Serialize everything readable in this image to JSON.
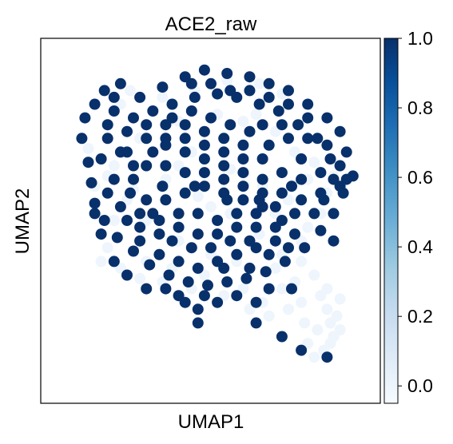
{
  "chart_data": {
    "type": "scatter",
    "title": "ACE2_raw",
    "xlabel": "UMAP1",
    "ylabel": "UMAP2",
    "xlim": [
      0,
      100
    ],
    "ylim": [
      0,
      100
    ],
    "grid": false,
    "colorbar": {
      "colormap": "Blues",
      "range": [
        -0.05,
        1.0
      ],
      "ticks": [
        0.0,
        0.2,
        0.4,
        0.6,
        0.8,
        1.0
      ],
      "tick_labels": [
        "0.0",
        "0.2",
        "0.4",
        "0.6",
        "0.8",
        "1.0"
      ],
      "low_color": "#f7fbff",
      "high_color": "#08306b"
    },
    "points_value_0": [
      [
        25,
        88
      ],
      [
        22,
        84
      ],
      [
        35,
        86
      ],
      [
        45,
        88
      ],
      [
        55,
        91
      ],
      [
        65,
        90
      ],
      [
        72,
        87
      ],
      [
        60,
        79
      ],
      [
        40,
        79
      ],
      [
        28,
        74
      ],
      [
        12,
        71
      ],
      [
        18,
        63
      ],
      [
        24,
        56
      ],
      [
        30,
        50
      ],
      [
        40,
        44
      ],
      [
        50,
        40
      ],
      [
        58,
        38
      ],
      [
        70,
        36
      ],
      [
        78,
        38
      ],
      [
        84,
        28
      ],
      [
        86,
        24
      ],
      [
        87,
        20
      ],
      [
        88,
        16
      ],
      [
        85,
        12
      ],
      [
        82,
        10
      ],
      [
        80,
        14
      ],
      [
        83,
        18
      ],
      [
        89,
        22
      ],
      [
        90,
        27
      ],
      [
        78,
        26
      ],
      [
        72,
        40
      ],
      [
        65,
        46
      ],
      [
        56,
        52
      ],
      [
        46,
        57
      ],
      [
        36,
        62
      ],
      [
        26,
        59
      ],
      [
        20,
        50
      ],
      [
        18,
        42
      ],
      [
        16,
        38
      ],
      [
        22,
        36
      ],
      [
        30,
        38
      ],
      [
        38,
        36
      ],
      [
        48,
        34
      ],
      [
        60,
        30
      ],
      [
        66,
        26
      ],
      [
        72,
        30
      ],
      [
        76,
        32
      ],
      [
        68,
        22
      ],
      [
        62,
        24
      ],
      [
        54,
        28
      ],
      [
        44,
        30
      ],
      [
        35,
        32
      ],
      [
        28,
        33
      ],
      [
        80,
        48
      ],
      [
        84,
        52
      ],
      [
        86,
        58
      ],
      [
        88,
        63
      ],
      [
        82,
        67
      ],
      [
        76,
        70
      ],
      [
        70,
        76
      ],
      [
        64,
        81
      ],
      [
        52,
        81
      ],
      [
        44,
        70
      ],
      [
        56,
        65
      ],
      [
        66,
        60
      ],
      [
        74,
        56
      ],
      [
        80,
        62
      ],
      [
        20,
        66
      ],
      [
        14,
        60
      ],
      [
        82,
        34
      ],
      [
        87,
        14
      ],
      [
        90,
        18
      ],
      [
        86,
        30
      ],
      [
        79,
        20
      ],
      [
        74,
        24
      ],
      [
        78,
        44
      ],
      [
        50,
        54
      ],
      [
        60,
        56
      ],
      [
        70,
        52
      ],
      [
        40,
        66
      ]
    ],
    "points_value_1": [
      [
        17,
        88
      ],
      [
        22,
        90
      ],
      [
        28,
        86
      ],
      [
        35,
        89
      ],
      [
        42,
        92
      ],
      [
        48,
        94
      ],
      [
        55,
        93
      ],
      [
        62,
        92
      ],
      [
        68,
        90
      ],
      [
        74,
        88
      ],
      [
        80,
        84
      ],
      [
        86,
        80
      ],
      [
        90,
        76
      ],
      [
        92,
        70
      ],
      [
        94,
        63
      ],
      [
        91,
        58
      ],
      [
        88,
        52
      ],
      [
        84,
        47
      ],
      [
        79,
        42
      ],
      [
        73,
        38
      ],
      [
        67,
        35
      ],
      [
        61,
        33
      ],
      [
        55,
        32
      ],
      [
        49,
        31
      ],
      [
        43,
        32
      ],
      [
        37,
        34
      ],
      [
        31,
        37
      ],
      [
        26,
        41
      ],
      [
        21,
        45
      ],
      [
        17,
        50
      ],
      [
        14,
        55
      ],
      [
        13,
        61
      ],
      [
        12,
        67
      ],
      [
        10,
        74
      ],
      [
        11,
        80
      ],
      [
        14,
        84
      ],
      [
        20,
        82
      ],
      [
        26,
        80
      ],
      [
        32,
        82
      ],
      [
        38,
        84
      ],
      [
        45,
        86
      ],
      [
        52,
        87
      ],
      [
        58,
        86
      ],
      [
        65,
        84
      ],
      [
        71,
        82
      ],
      [
        77,
        78
      ],
      [
        83,
        74
      ],
      [
        87,
        68
      ],
      [
        88,
        62
      ],
      [
        84,
        58
      ],
      [
        78,
        56
      ],
      [
        72,
        58
      ],
      [
        66,
        62
      ],
      [
        60,
        64
      ],
      [
        54,
        66
      ],
      [
        48,
        68
      ],
      [
        42,
        70
      ],
      [
        36,
        72
      ],
      [
        30,
        74
      ],
      [
        24,
        76
      ],
      [
        18,
        74
      ],
      [
        16,
        68
      ],
      [
        20,
        62
      ],
      [
        25,
        58
      ],
      [
        30,
        56
      ],
      [
        36,
        56
      ],
      [
        42,
        58
      ],
      [
        48,
        60
      ],
      [
        54,
        58
      ],
      [
        60,
        56
      ],
      [
        66,
        54
      ],
      [
        72,
        50
      ],
      [
        76,
        46
      ],
      [
        70,
        44
      ],
      [
        64,
        42
      ],
      [
        58,
        40
      ],
      [
        52,
        38
      ],
      [
        46,
        36
      ],
      [
        40,
        38
      ],
      [
        34,
        40
      ],
      [
        28,
        44
      ],
      [
        24,
        50
      ],
      [
        28,
        52
      ],
      [
        34,
        50
      ],
      [
        40,
        48
      ],
      [
        46,
        46
      ],
      [
        52,
        46
      ],
      [
        58,
        48
      ],
      [
        64,
        48
      ],
      [
        70,
        48
      ],
      [
        66,
        68
      ],
      [
        60,
        72
      ],
      [
        54,
        74
      ],
      [
        48,
        76
      ],
      [
        42,
        78
      ],
      [
        36,
        78
      ],
      [
        30,
        78
      ],
      [
        24,
        70
      ],
      [
        30,
        66
      ],
      [
        36,
        66
      ],
      [
        42,
        64
      ],
      [
        48,
        64
      ],
      [
        54,
        62
      ],
      [
        60,
        60
      ],
      [
        66,
        58
      ],
      [
        72,
        64
      ],
      [
        78,
        68
      ],
      [
        80,
        74
      ],
      [
        74,
        74
      ],
      [
        68,
        72
      ],
      [
        62,
        76
      ],
      [
        56,
        78
      ],
      [
        50,
        80
      ],
      [
        44,
        82
      ],
      [
        38,
        80
      ],
      [
        32,
        70
      ],
      [
        26,
        66
      ],
      [
        22,
        70
      ],
      [
        18,
        78
      ],
      [
        20,
        86
      ],
      [
        44,
        90
      ],
      [
        50,
        90
      ],
      [
        56,
        88
      ],
      [
        62,
        88
      ],
      [
        68,
        86
      ],
      [
        74,
        84
      ],
      [
        80,
        80
      ],
      [
        84,
        64
      ],
      [
        90,
        66
      ],
      [
        82,
        52
      ],
      [
        76,
        52
      ],
      [
        70,
        54
      ],
      [
        64,
        52
      ],
      [
        58,
        52
      ],
      [
        52,
        50
      ],
      [
        46,
        52
      ],
      [
        40,
        52
      ],
      [
        34,
        46
      ],
      [
        28,
        48
      ],
      [
        22,
        54
      ],
      [
        18,
        58
      ],
      [
        44,
        42
      ],
      [
        50,
        42
      ],
      [
        56,
        44
      ],
      [
        62,
        44
      ],
      [
        68,
        40
      ],
      [
        74,
        42
      ],
      [
        38,
        44
      ],
      [
        32,
        52
      ],
      [
        26,
        62
      ],
      [
        60,
        68
      ],
      [
        54,
        70
      ],
      [
        48,
        72
      ],
      [
        42,
        74
      ],
      [
        36,
        74
      ],
      [
        66,
        78
      ],
      [
        72,
        78
      ],
      [
        78,
        62
      ],
      [
        86,
        72
      ],
      [
        90,
        60
      ],
      [
        58,
        28
      ],
      [
        52,
        26
      ],
      [
        46,
        24
      ],
      [
        40,
        28
      ],
      [
        62,
        36
      ],
      [
        68,
        30
      ],
      [
        54,
        36
      ],
      [
        48,
        28
      ],
      [
        42,
        26
      ],
      [
        36,
        30
      ],
      [
        30,
        30
      ],
      [
        24,
        34
      ],
      [
        20,
        38
      ],
      [
        46,
        20
      ],
      [
        64,
        20
      ],
      [
        72,
        16
      ],
      [
        78,
        12
      ],
      [
        86,
        10
      ],
      [
        75,
        30
      ],
      [
        64,
        26
      ],
      [
        16,
        46
      ],
      [
        14,
        52
      ],
      [
        35,
        60
      ],
      [
        45,
        60
      ],
      [
        55,
        56
      ],
      [
        65,
        56
      ],
      [
        75,
        60
      ],
      [
        85,
        56
      ],
      [
        88,
        44
      ],
      [
        92,
        62
      ]
    ],
    "scatter_bbox_note": ""
  }
}
